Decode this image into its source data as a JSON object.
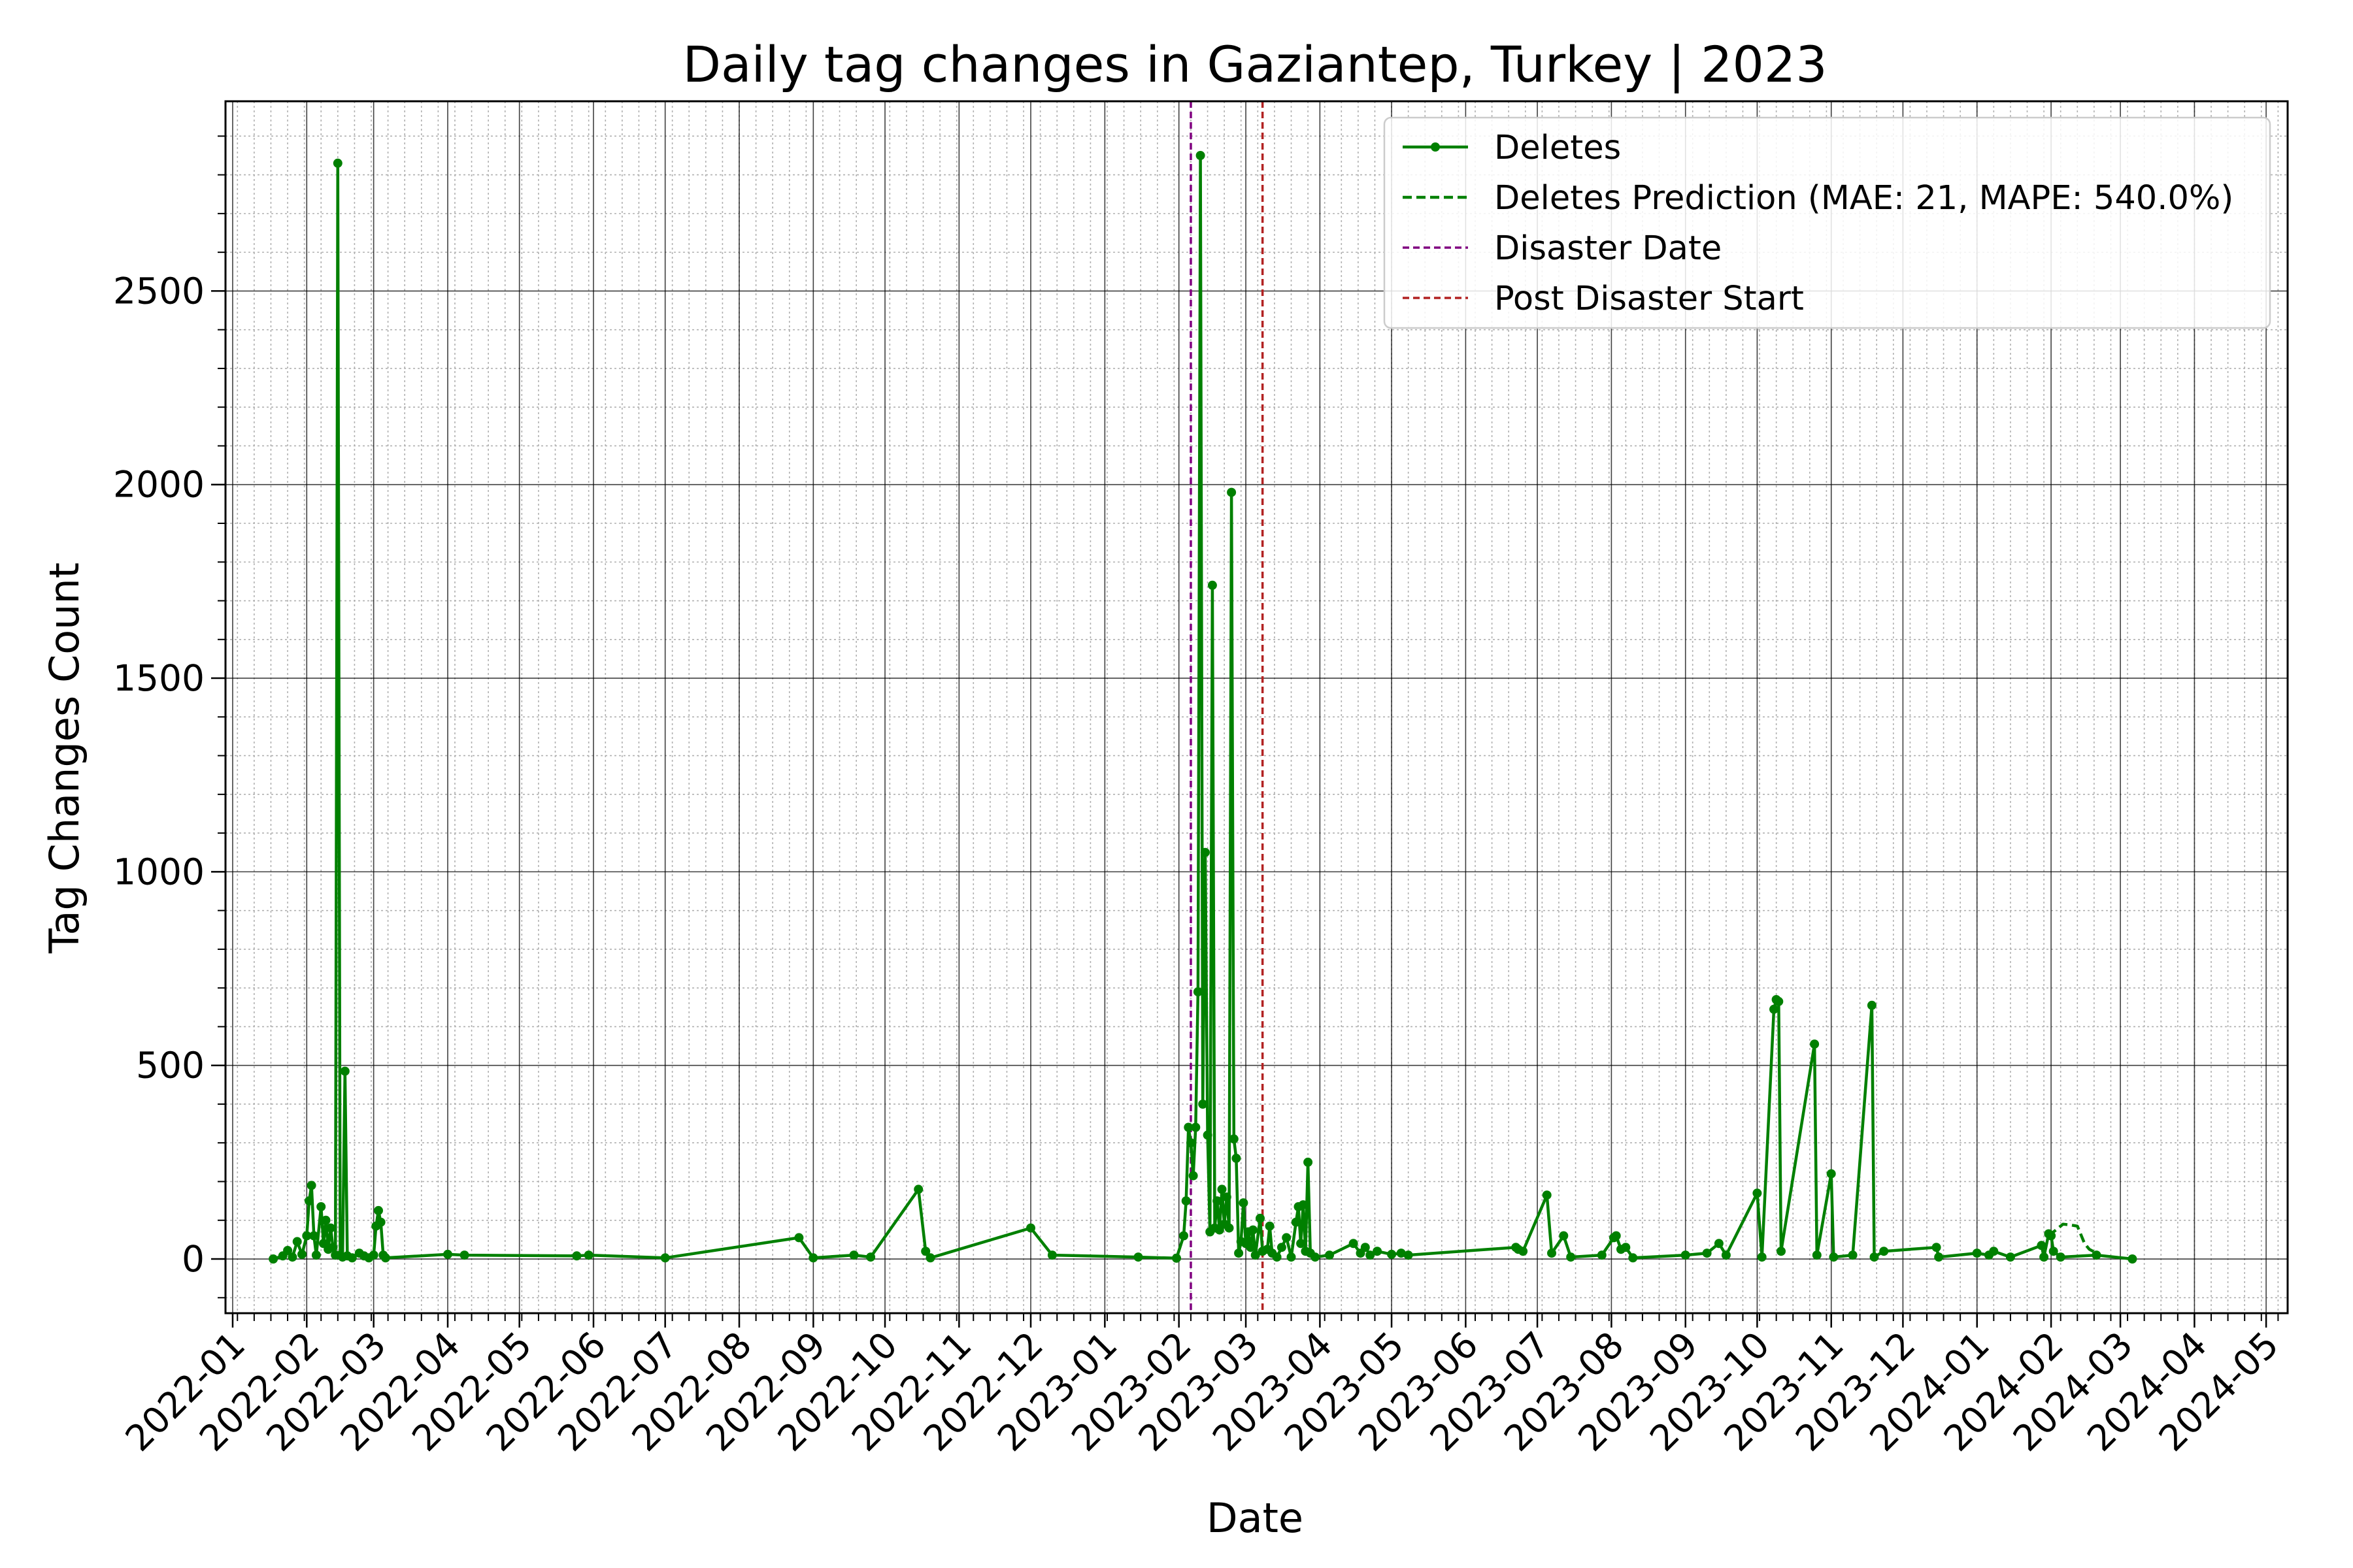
{
  "chart_data": {
    "type": "line",
    "title": "Daily tag changes in Gaziantep, Turkey | 2023",
    "xlabel": "Date",
    "ylabel": "Tag Changes Count",
    "xlim": [
      "2021-12-29",
      "2024-05-10"
    ],
    "ylim": [
      -140,
      2990
    ],
    "grid": "on (major and minor)",
    "legend_placement": "top-right",
    "y_ticks": [
      0,
      500,
      1000,
      1500,
      2000,
      2500
    ],
    "x_ticks": [
      "2022-01",
      "2022-02",
      "2022-03",
      "2022-04",
      "2022-05",
      "2022-06",
      "2022-07",
      "2022-08",
      "2022-09",
      "2022-10",
      "2022-11",
      "2022-12",
      "2023-01",
      "2023-02",
      "2023-03",
      "2023-04",
      "2023-05",
      "2023-06",
      "2023-07",
      "2023-08",
      "2023-09",
      "2023-10",
      "2023-11",
      "2023-12",
      "2024-01",
      "2024-02",
      "2024-03",
      "2024-04",
      "2024-05"
    ],
    "vlines": [
      {
        "name": "Disaster Date",
        "date": "2023-02-06",
        "color": "#800080"
      },
      {
        "name": "Post Disaster Start",
        "date": "2023-03-08",
        "color": "#b22222"
      }
    ],
    "series": [
      {
        "name": "Deletes",
        "color": "#008000",
        "style": "solid-with-markers",
        "points": [
          [
            "2022-01-18",
            0
          ],
          [
            "2022-01-22",
            8
          ],
          [
            "2022-01-24",
            22
          ],
          [
            "2022-01-26",
            5
          ],
          [
            "2022-01-28",
            45
          ],
          [
            "2022-01-30",
            12
          ],
          [
            "2022-02-01",
            60
          ],
          [
            "2022-02-02",
            150
          ],
          [
            "2022-02-03",
            190
          ],
          [
            "2022-02-04",
            60
          ],
          [
            "2022-02-05",
            10
          ],
          [
            "2022-02-07",
            135
          ],
          [
            "2022-02-08",
            40
          ],
          [
            "2022-02-09",
            100
          ],
          [
            "2022-02-10",
            25
          ],
          [
            "2022-02-11",
            80
          ],
          [
            "2022-02-12",
            30
          ],
          [
            "2022-02-13",
            10
          ],
          [
            "2022-02-14",
            2830
          ],
          [
            "2022-02-15",
            10
          ],
          [
            "2022-02-16",
            5
          ],
          [
            "2022-02-17",
            485
          ],
          [
            "2022-02-18",
            8
          ],
          [
            "2022-02-20",
            3
          ],
          [
            "2022-02-23",
            15
          ],
          [
            "2022-02-25",
            8
          ],
          [
            "2022-02-27",
            3
          ],
          [
            "2022-03-01",
            10
          ],
          [
            "2022-03-02",
            85
          ],
          [
            "2022-03-03",
            125
          ],
          [
            "2022-03-04",
            95
          ],
          [
            "2022-03-05",
            10
          ],
          [
            "2022-03-06",
            3
          ],
          [
            "2022-04-01",
            12
          ],
          [
            "2022-04-08",
            10
          ],
          [
            "2022-05-25",
            8
          ],
          [
            "2022-05-30",
            10
          ],
          [
            "2022-07-01",
            3
          ],
          [
            "2022-08-26",
            55
          ],
          [
            "2022-09-01",
            3
          ],
          [
            "2022-09-18",
            10
          ],
          [
            "2022-09-25",
            5
          ],
          [
            "2022-10-15",
            180
          ],
          [
            "2022-10-18",
            20
          ],
          [
            "2022-10-20",
            3
          ],
          [
            "2022-12-01",
            80
          ],
          [
            "2022-12-10",
            10
          ],
          [
            "2023-01-15",
            5
          ],
          [
            "2023-01-31",
            2
          ],
          [
            "2023-02-03",
            60
          ],
          [
            "2023-02-04",
            150
          ],
          [
            "2023-02-05",
            340
          ],
          [
            "2023-02-06",
            300
          ],
          [
            "2023-02-07",
            215
          ],
          [
            "2023-02-08",
            340
          ],
          [
            "2023-02-09",
            690
          ],
          [
            "2023-02-10",
            2850
          ],
          [
            "2023-02-11",
            400
          ],
          [
            "2023-02-12",
            1050
          ],
          [
            "2023-02-13",
            320
          ],
          [
            "2023-02-14",
            70
          ],
          [
            "2023-02-15",
            1740
          ],
          [
            "2023-02-16",
            80
          ],
          [
            "2023-02-17",
            150
          ],
          [
            "2023-02-18",
            75
          ],
          [
            "2023-02-19",
            180
          ],
          [
            "2023-02-20",
            90
          ],
          [
            "2023-02-21",
            160
          ],
          [
            "2023-02-22",
            80
          ],
          [
            "2023-02-23",
            1980
          ],
          [
            "2023-02-24",
            310
          ],
          [
            "2023-02-25",
            260
          ],
          [
            "2023-02-26",
            15
          ],
          [
            "2023-02-27",
            45
          ],
          [
            "2023-02-28",
            145
          ],
          [
            "2023-03-01",
            40
          ],
          [
            "2023-03-02",
            70
          ],
          [
            "2023-03-03",
            30
          ],
          [
            "2023-03-04",
            75
          ],
          [
            "2023-03-05",
            10
          ],
          [
            "2023-03-07",
            105
          ],
          [
            "2023-03-08",
            20
          ],
          [
            "2023-03-10",
            25
          ],
          [
            "2023-03-11",
            85
          ],
          [
            "2023-03-12",
            15
          ],
          [
            "2023-03-14",
            5
          ],
          [
            "2023-03-16",
            30
          ],
          [
            "2023-03-18",
            55
          ],
          [
            "2023-03-20",
            5
          ],
          [
            "2023-03-22",
            95
          ],
          [
            "2023-03-23",
            135
          ],
          [
            "2023-03-24",
            40
          ],
          [
            "2023-03-25",
            140
          ],
          [
            "2023-03-26",
            20
          ],
          [
            "2023-03-27",
            250
          ],
          [
            "2023-03-28",
            15
          ],
          [
            "2023-03-30",
            5
          ],
          [
            "2023-04-05",
            10
          ],
          [
            "2023-04-15",
            40
          ],
          [
            "2023-04-18",
            15
          ],
          [
            "2023-04-20",
            30
          ],
          [
            "2023-04-22",
            10
          ],
          [
            "2023-04-25",
            20
          ],
          [
            "2023-05-01",
            12
          ],
          [
            "2023-05-05",
            15
          ],
          [
            "2023-05-08",
            10
          ],
          [
            "2023-06-22",
            30
          ],
          [
            "2023-06-23",
            25
          ],
          [
            "2023-06-25",
            20
          ],
          [
            "2023-07-05",
            165
          ],
          [
            "2023-07-07",
            15
          ],
          [
            "2023-07-12",
            60
          ],
          [
            "2023-07-15",
            5
          ],
          [
            "2023-07-28",
            10
          ],
          [
            "2023-08-02",
            55
          ],
          [
            "2023-08-03",
            60
          ],
          [
            "2023-08-05",
            25
          ],
          [
            "2023-08-07",
            30
          ],
          [
            "2023-08-10",
            3
          ],
          [
            "2023-09-01",
            10
          ],
          [
            "2023-09-10",
            15
          ],
          [
            "2023-09-15",
            40
          ],
          [
            "2023-09-18",
            10
          ],
          [
            "2023-10-01",
            170
          ],
          [
            "2023-10-03",
            5
          ],
          [
            "2023-10-08",
            645
          ],
          [
            "2023-10-09",
            670
          ],
          [
            "2023-10-10",
            665
          ],
          [
            "2023-10-11",
            20
          ],
          [
            "2023-10-25",
            555
          ],
          [
            "2023-10-26",
            10
          ],
          [
            "2023-11-01",
            220
          ],
          [
            "2023-11-02",
            5
          ],
          [
            "2023-11-10",
            10
          ],
          [
            "2023-11-18",
            655
          ],
          [
            "2023-11-19",
            5
          ],
          [
            "2023-11-23",
            20
          ],
          [
            "2023-12-15",
            30
          ],
          [
            "2023-12-16",
            5
          ],
          [
            "2024-01-01",
            15
          ],
          [
            "2024-01-06",
            10
          ],
          [
            "2024-01-08",
            20
          ],
          [
            "2024-01-15",
            5
          ],
          [
            "2024-01-28",
            35
          ],
          [
            "2024-01-29",
            5
          ],
          [
            "2024-01-31",
            65
          ],
          [
            "2024-02-01",
            60
          ],
          [
            "2024-02-02",
            20
          ],
          [
            "2024-02-05",
            5
          ],
          [
            "2024-02-20",
            10
          ],
          [
            "2024-03-06",
            0
          ]
        ]
      },
      {
        "name": "Deletes Prediction (MAE: 21, MAPE: 540.0%)",
        "color": "#008000",
        "style": "dashed",
        "points": [
          [
            "2024-01-31",
            60
          ],
          [
            "2024-02-03",
            75
          ],
          [
            "2024-02-06",
            90
          ],
          [
            "2024-02-09",
            88
          ],
          [
            "2024-02-12",
            85
          ],
          [
            "2024-02-15",
            40
          ],
          [
            "2024-02-17",
            25
          ],
          [
            "2024-02-20",
            15
          ]
        ]
      }
    ]
  }
}
